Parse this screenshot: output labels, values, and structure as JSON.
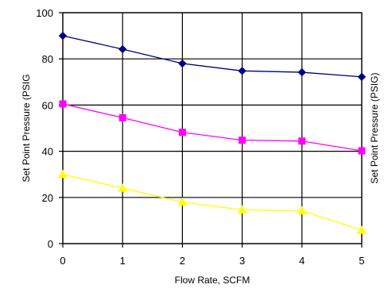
{
  "chart_data": {
    "type": "line",
    "title": "",
    "xlabel": "Flow Rate, SCFM",
    "ylabel_left": "Set Point Pressure (PSIG",
    "ylabel_right": "Set Point Pressure (PSIG)",
    "xlim": [
      0,
      5
    ],
    "ylim": [
      0,
      100
    ],
    "x": [
      0,
      1,
      2,
      3,
      4,
      5
    ],
    "x_ticks": [
      "0",
      "1",
      "2",
      "3",
      "4",
      "5"
    ],
    "y_ticks": [
      "0",
      "20",
      "40",
      "60",
      "80",
      "100"
    ],
    "grid": true,
    "legend": "none",
    "series": [
      {
        "color": "#000080",
        "marker": "diamond",
        "values": [
          90,
          84.2,
          78,
          74.8,
          74.2,
          72.2
        ]
      },
      {
        "color": "#ff00ff",
        "marker": "square",
        "values": [
          60.5,
          54.5,
          48.2,
          44.8,
          44.4,
          40.2
        ]
      },
      {
        "color": "#ffff00",
        "marker": "triangle",
        "values": [
          30,
          24,
          18,
          14.6,
          14.2,
          5.8
        ]
      }
    ]
  }
}
